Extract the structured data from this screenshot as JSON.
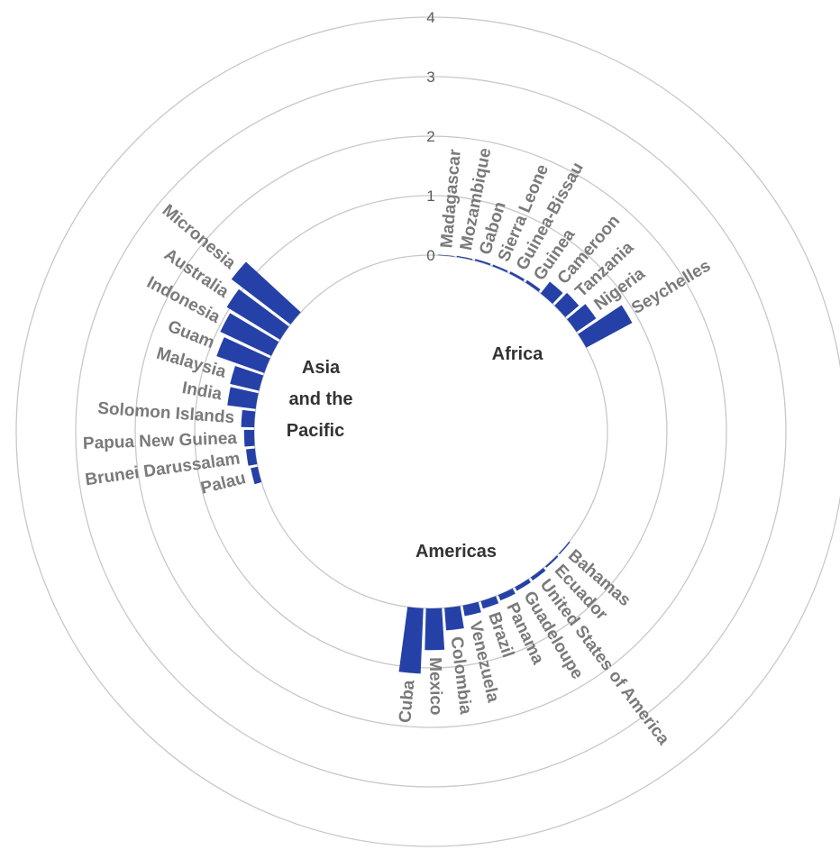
{
  "chart_data": {
    "type": "bar",
    "layout": "radial",
    "bar_color": "#2541A8",
    "r_ticks": [
      "0",
      "1",
      "2",
      "3",
      "4"
    ],
    "rlim": [
      0,
      4
    ],
    "grid": true,
    "groups": [
      {
        "name": "Africa",
        "categories": [
          "Madagascar",
          "Mozambique",
          "Gabon",
          "Sierra Leone",
          "Guinea-Bissau",
          "Guinea",
          "Cameroon",
          "Tanzania",
          "Nigeria",
          "Seychelles"
        ],
        "values": [
          0.01,
          0.02,
          0.03,
          0.03,
          0.04,
          0.05,
          0.25,
          0.3,
          0.4,
          0.88
        ]
      },
      {
        "name": "Americas",
        "categories": [
          "Bahamas",
          "Ecuador",
          "United States of America",
          "Guadeloupe",
          "Panama",
          "Brazil",
          "Venezuela",
          "Colombia",
          "Mexico",
          "Cuba"
        ],
        "values": [
          0.02,
          0.03,
          0.06,
          0.07,
          0.1,
          0.13,
          0.18,
          0.38,
          0.7,
          1.1
        ]
      },
      {
        "name": "Asia\nand the\nPacific",
        "categories": [
          "Palau",
          "Brunei Darussalam",
          "Papua New Guinea",
          "Solomon Islands",
          "India",
          "Malaysia",
          "Guam",
          "Indonesia",
          "Australia",
          "Micronesia"
        ],
        "values": [
          0.12,
          0.15,
          0.17,
          0.22,
          0.48,
          0.5,
          0.85,
          0.95,
          1.05,
          1.25
        ]
      }
    ]
  },
  "group_labels": {
    "africa": "Africa",
    "americas": "Americas",
    "asia_line1": "Asia",
    "asia_line2": "and the",
    "asia_line3": "Pacific"
  }
}
